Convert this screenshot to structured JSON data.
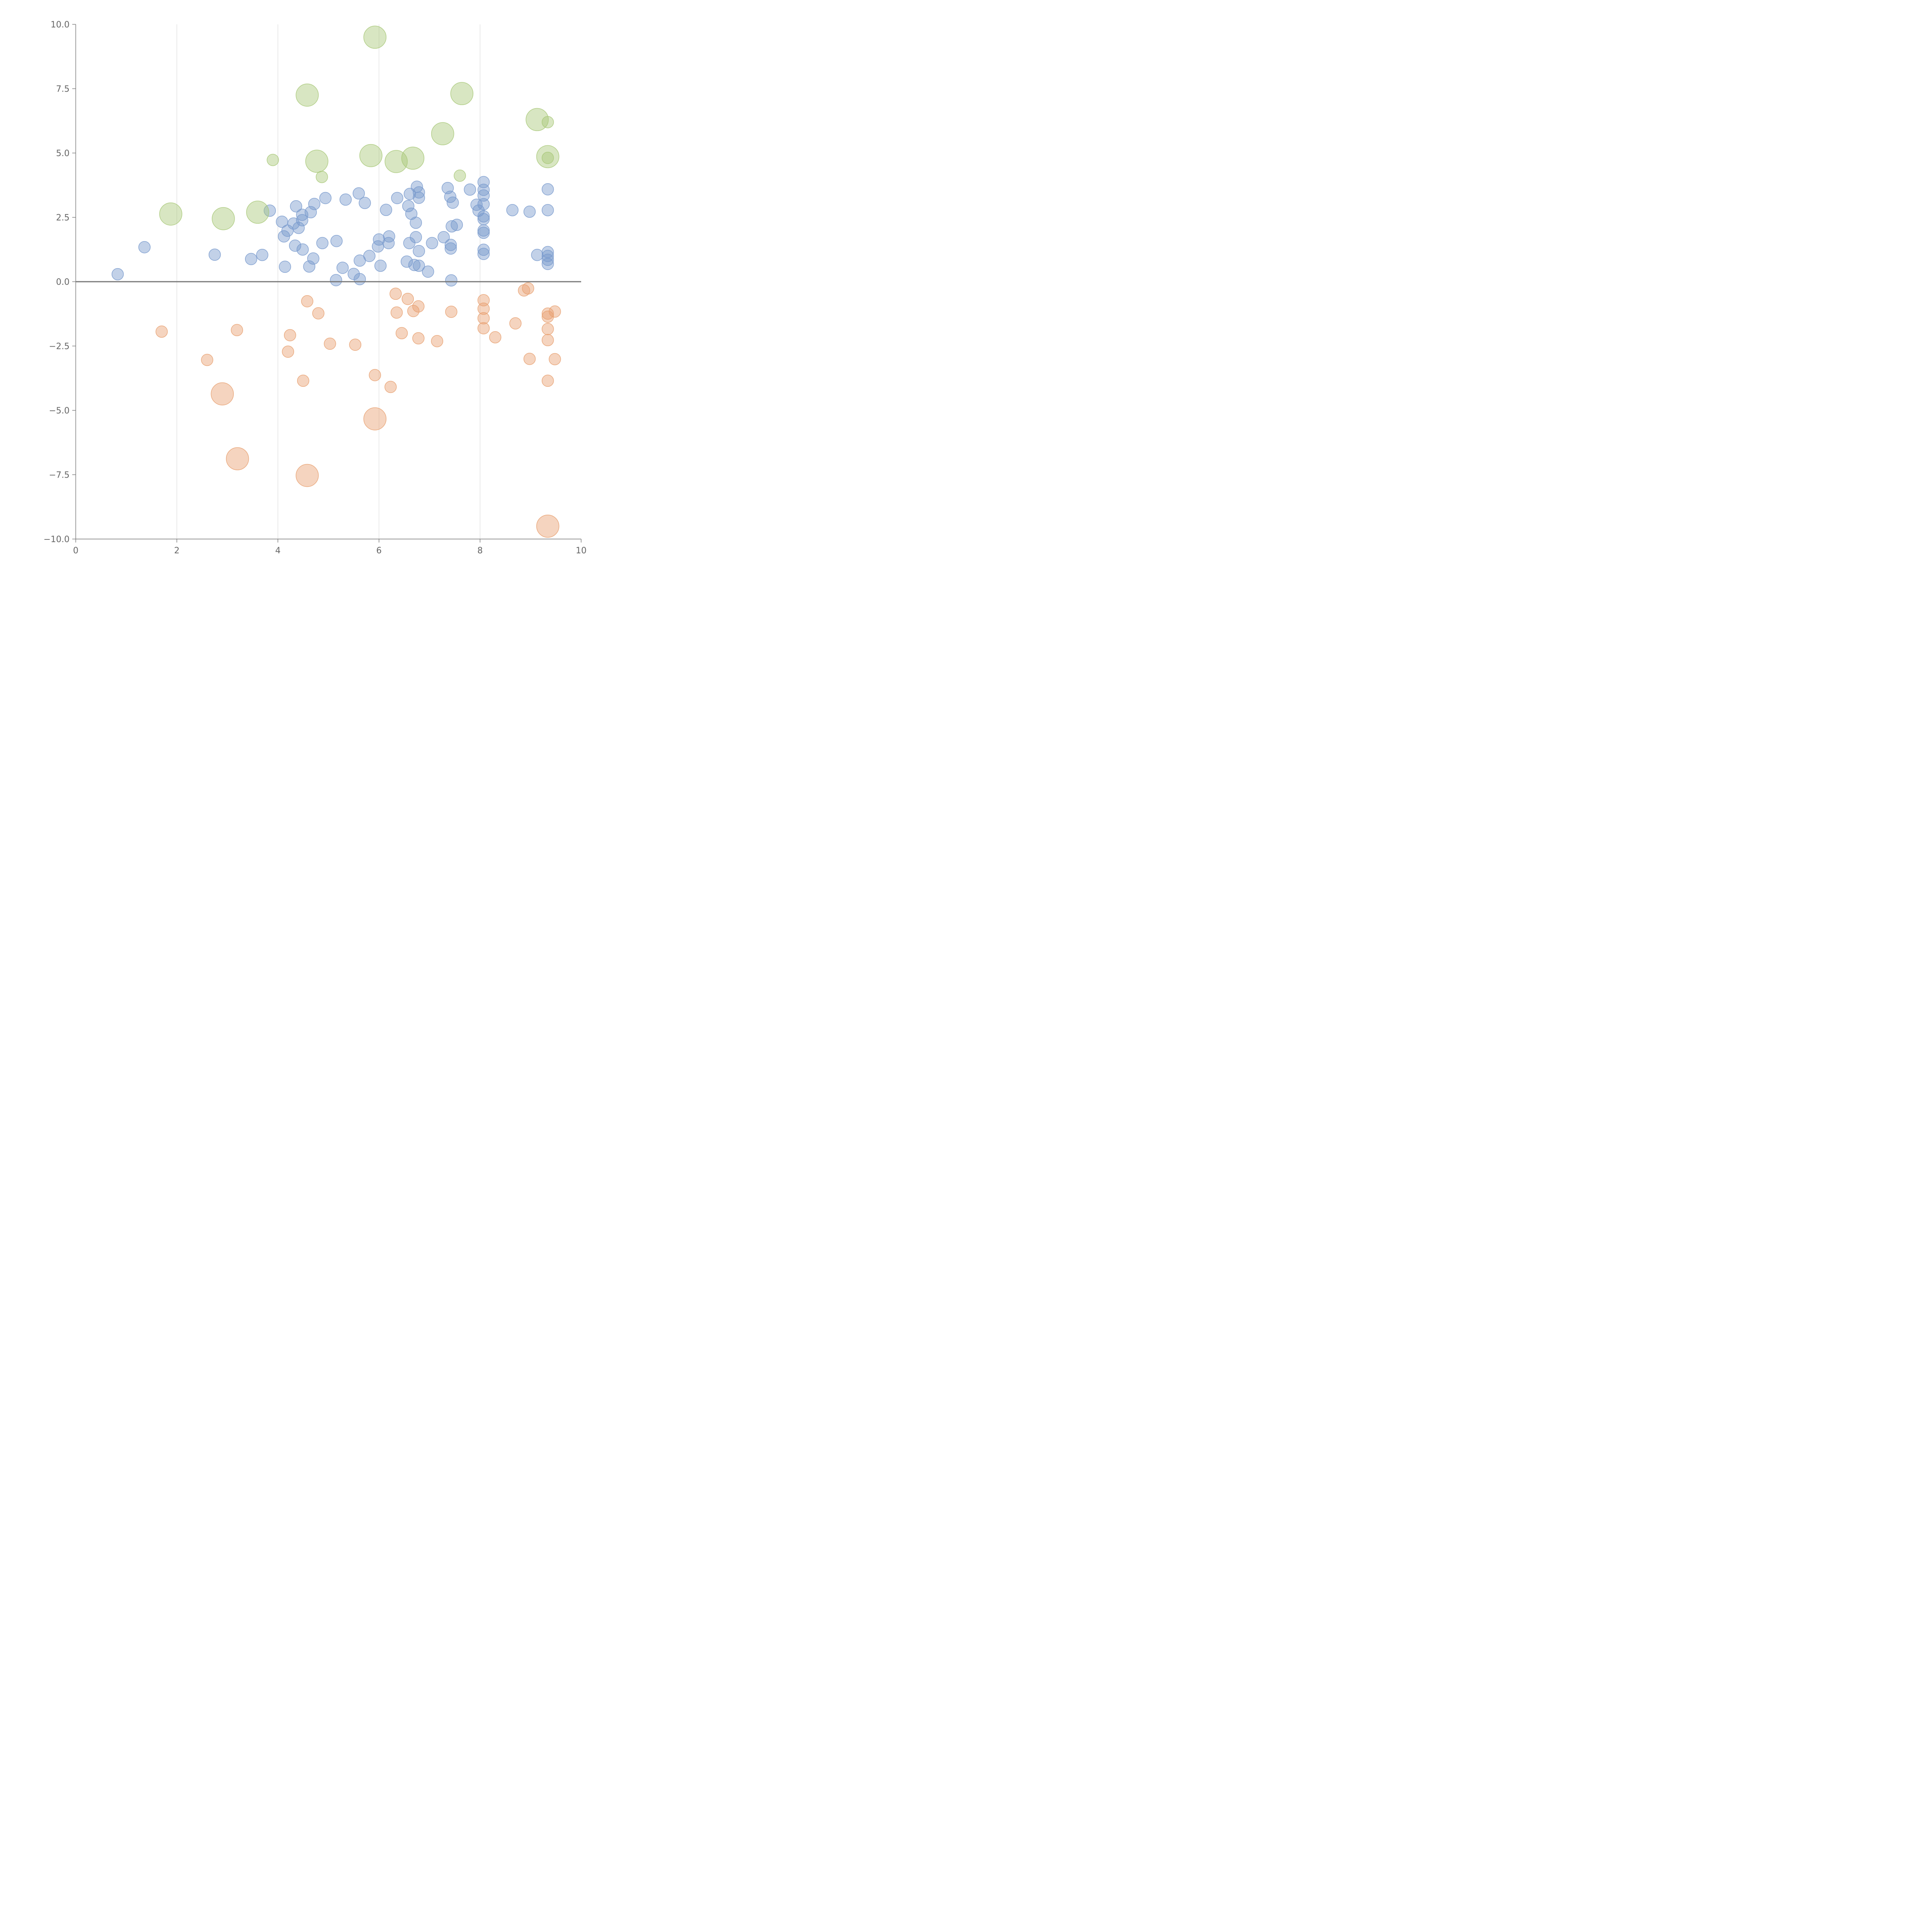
{
  "chart_data": {
    "type": "scatter",
    "title": "",
    "xlabel": "",
    "ylabel": "",
    "xlim": [
      0,
      10
    ],
    "ylim": [
      -10,
      10
    ],
    "x_ticks": [
      {
        "value": 0,
        "label": "0"
      },
      {
        "value": 2,
        "label": "2"
      },
      {
        "value": 4,
        "label": "4"
      },
      {
        "value": 6,
        "label": "6"
      },
      {
        "value": 8,
        "label": "8"
      },
      {
        "value": 10,
        "label": "10"
      }
    ],
    "y_ticks": [
      {
        "value": 10,
        "label": "10.0"
      },
      {
        "value": 7.5,
        "label": "7.5"
      },
      {
        "value": 5,
        "label": "5.0"
      },
      {
        "value": 2.5,
        "label": "2.5"
      },
      {
        "value": 0,
        "label": "0.0"
      },
      {
        "value": -2.5,
        "label": "−2.5"
      },
      {
        "value": -5,
        "label": "−5.0"
      },
      {
        "value": -7.5,
        "label": "−7.5"
      },
      {
        "value": -10,
        "label": "−10.0"
      }
    ],
    "grid": {
      "x": true,
      "y": false
    },
    "zero_line": true,
    "legend": "none",
    "size_scale": "relative radius: small=1, large=2.2",
    "series": [
      {
        "color": "#7799cc",
        "size": "small",
        "points": [
          [
            0.83,
            0.29
          ],
          [
            1.36,
            1.34
          ],
          [
            2.75,
            1.05
          ],
          [
            3.47,
            0.88
          ],
          [
            3.69,
            1.04
          ],
          [
            3.84,
            2.76
          ],
          [
            4.08,
            2.33
          ],
          [
            4.12,
            1.76
          ],
          [
            4.14,
            0.58
          ],
          [
            4.19,
            1.98
          ],
          [
            4.31,
            2.26
          ],
          [
            4.34,
            1.4
          ],
          [
            4.36,
            2.93
          ],
          [
            4.41,
            2.09
          ],
          [
            4.48,
            2.6
          ],
          [
            4.48,
            2.39
          ],
          [
            4.49,
            1.25
          ],
          [
            4.62,
            0.59
          ],
          [
            4.65,
            2.7
          ],
          [
            4.7,
            0.9
          ],
          [
            4.72,
            3.02
          ],
          [
            4.88,
            1.5
          ],
          [
            4.94,
            3.25
          ],
          [
            5.15,
            0.06
          ],
          [
            5.16,
            1.58
          ],
          [
            5.28,
            0.54
          ],
          [
            5.34,
            3.19
          ],
          [
            5.5,
            0.3
          ],
          [
            5.6,
            3.43
          ],
          [
            5.62,
            0.1
          ],
          [
            5.62,
            0.82
          ],
          [
            5.72,
            3.06
          ],
          [
            5.81,
            1.0
          ],
          [
            5.98,
            1.37
          ],
          [
            6.0,
            1.64
          ],
          [
            6.03,
            0.62
          ],
          [
            6.14,
            2.79
          ],
          [
            6.19,
            1.5
          ],
          [
            6.2,
            1.76
          ],
          [
            6.36,
            3.25
          ],
          [
            6.55,
            0.78
          ],
          [
            6.58,
            2.94
          ],
          [
            6.6,
            1.5
          ],
          [
            6.61,
            3.41
          ],
          [
            6.64,
            2.64
          ],
          [
            6.7,
            0.65
          ],
          [
            6.73,
            2.29
          ],
          [
            6.73,
            1.73
          ],
          [
            6.75,
            3.69
          ],
          [
            6.79,
            3.47
          ],
          [
            6.79,
            3.26
          ],
          [
            6.79,
            1.19
          ],
          [
            6.79,
            0.62
          ],
          [
            6.97,
            0.39
          ],
          [
            7.05,
            1.5
          ],
          [
            7.28,
            1.73
          ],
          [
            7.36,
            3.64
          ],
          [
            7.41,
            3.3
          ],
          [
            7.42,
            1.43
          ],
          [
            7.42,
            1.29
          ],
          [
            7.43,
            0.05
          ],
          [
            7.44,
            2.15
          ],
          [
            7.46,
            3.07
          ],
          [
            7.54,
            2.21
          ],
          [
            7.8,
            3.58
          ],
          [
            7.93,
            2.99
          ],
          [
            7.97,
            2.76
          ],
          [
            8.07,
            3.87
          ],
          [
            8.07,
            3.57
          ],
          [
            8.07,
            3.35
          ],
          [
            8.07,
            3.01
          ],
          [
            8.07,
            2.54
          ],
          [
            8.07,
            2.43
          ],
          [
            8.07,
            1.99
          ],
          [
            8.07,
            1.9
          ],
          [
            8.07,
            1.24
          ],
          [
            8.07,
            1.08
          ],
          [
            8.64,
            2.78
          ],
          [
            8.98,
            2.72
          ],
          [
            9.13,
            1.04
          ],
          [
            9.34,
            3.59
          ],
          [
            9.34,
            2.78
          ],
          [
            9.34,
            1.15
          ],
          [
            9.34,
            1.0
          ],
          [
            9.34,
            0.85
          ],
          [
            9.34,
            0.69
          ]
        ]
      },
      {
        "color": "#e8a070",
        "size": "small",
        "points": [
          [
            1.7,
            -1.94
          ],
          [
            2.6,
            -3.04
          ],
          [
            3.19,
            -1.88
          ],
          [
            4.2,
            -2.72
          ],
          [
            4.24,
            -2.08
          ],
          [
            4.5,
            -3.85
          ],
          [
            4.58,
            -0.76
          ],
          [
            4.8,
            -1.23
          ],
          [
            5.03,
            -2.41
          ],
          [
            5.53,
            -2.45
          ],
          [
            5.92,
            -3.63
          ],
          [
            6.23,
            -4.09
          ],
          [
            6.33,
            -0.47
          ],
          [
            6.35,
            -1.2
          ],
          [
            6.45,
            -2.0
          ],
          [
            6.57,
            -0.67
          ],
          [
            6.68,
            -1.14
          ],
          [
            6.78,
            -0.96
          ],
          [
            6.78,
            -2.2
          ],
          [
            7.15,
            -2.31
          ],
          [
            7.43,
            -1.17
          ],
          [
            8.07,
            -0.72
          ],
          [
            8.07,
            -1.05
          ],
          [
            8.07,
            -1.42
          ],
          [
            8.07,
            -1.81
          ],
          [
            8.3,
            -2.16
          ],
          [
            8.7,
            -1.62
          ],
          [
            8.87,
            -0.34
          ],
          [
            8.95,
            -0.26
          ],
          [
            8.98,
            -3.0
          ],
          [
            9.34,
            -1.24
          ],
          [
            9.34,
            -1.36
          ],
          [
            9.34,
            -1.84
          ],
          [
            9.34,
            -2.27
          ],
          [
            9.34,
            -3.85
          ],
          [
            9.48,
            -1.16
          ],
          [
            9.48,
            -3.01
          ]
        ]
      },
      {
        "color": "#e8a070",
        "size": "large",
        "points": [
          [
            2.9,
            -4.36
          ],
          [
            3.2,
            -6.88
          ],
          [
            4.58,
            -7.53
          ],
          [
            5.92,
            -5.33
          ],
          [
            9.34,
            -9.5
          ]
        ]
      },
      {
        "color": "#a8c878",
        "size": "large",
        "points": [
          [
            1.88,
            2.63
          ],
          [
            2.92,
            2.45
          ],
          [
            3.6,
            2.7
          ],
          [
            4.58,
            7.25
          ],
          [
            4.77,
            4.68
          ],
          [
            5.84,
            4.9
          ],
          [
            5.92,
            9.5
          ],
          [
            6.34,
            4.67
          ],
          [
            6.67,
            4.8
          ],
          [
            7.26,
            5.75
          ],
          [
            7.64,
            7.31
          ],
          [
            9.13,
            6.3
          ],
          [
            9.34,
            4.86
          ]
        ]
      },
      {
        "color": "#a8c878",
        "size": "small",
        "points": [
          [
            3.9,
            4.73
          ],
          [
            4.87,
            4.07
          ],
          [
            7.6,
            4.12
          ],
          [
            9.34,
            6.2
          ],
          [
            9.34,
            4.81
          ]
        ]
      }
    ]
  }
}
